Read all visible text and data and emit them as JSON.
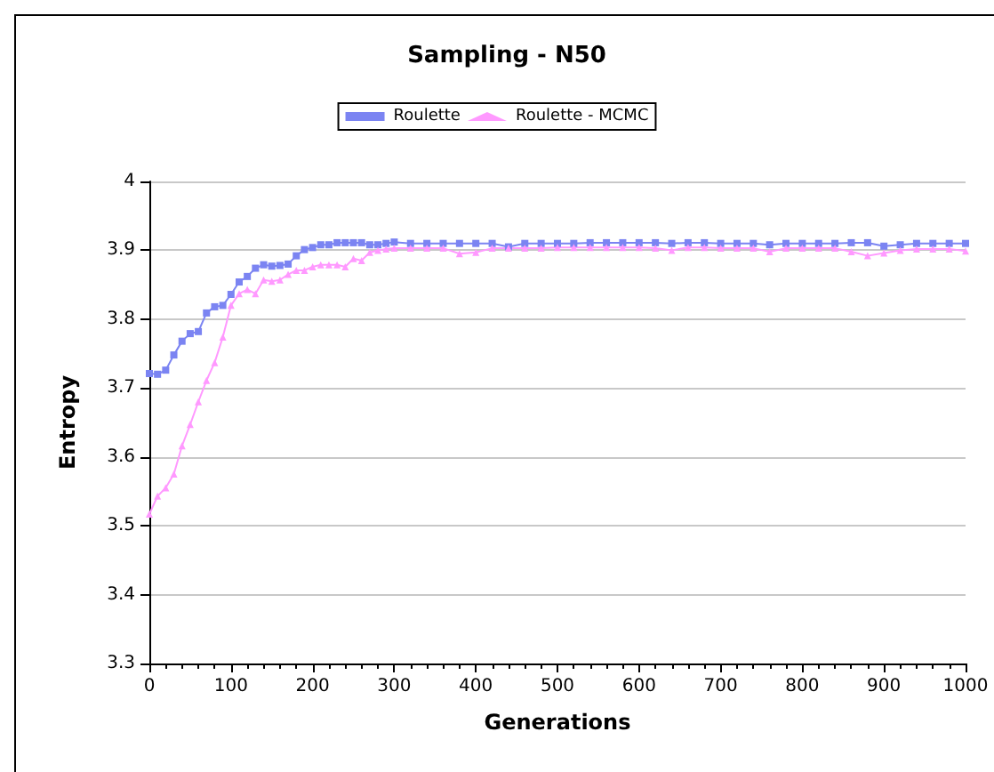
{
  "chart_data": {
    "type": "line",
    "title": "Sampling - N50",
    "xlabel": "Generations",
    "ylabel": "Entropy",
    "x": [
      0,
      10,
      20,
      30,
      40,
      50,
      60,
      70,
      80,
      90,
      100,
      110,
      120,
      130,
      140,
      150,
      160,
      170,
      180,
      190,
      200,
      210,
      220,
      230,
      240,
      250,
      260,
      270,
      280,
      290,
      300,
      320,
      340,
      360,
      380,
      400,
      420,
      440,
      460,
      480,
      500,
      520,
      540,
      560,
      580,
      600,
      620,
      640,
      660,
      680,
      700,
      720,
      740,
      760,
      780,
      800,
      820,
      840,
      860,
      880,
      900,
      920,
      940,
      960,
      980,
      1000
    ],
    "series": [
      {
        "name": "Roulette",
        "color": "#7b84f2",
        "marker": "square",
        "values": [
          3.721,
          3.72,
          3.726,
          3.748,
          3.768,
          3.779,
          3.782,
          3.809,
          3.818,
          3.82,
          3.836,
          3.854,
          3.862,
          3.874,
          3.879,
          3.877,
          3.878,
          3.88,
          3.892,
          3.901,
          3.904,
          3.908,
          3.908,
          3.911,
          3.911,
          3.911,
          3.911,
          3.908,
          3.908,
          3.91,
          3.912,
          3.91,
          3.91,
          3.91,
          3.91,
          3.91,
          3.91,
          3.905,
          3.91,
          3.91,
          3.91,
          3.91,
          3.911,
          3.911,
          3.911,
          3.911,
          3.911,
          3.91,
          3.911,
          3.911,
          3.91,
          3.91,
          3.91,
          3.908,
          3.91,
          3.91,
          3.91,
          3.91,
          3.911,
          3.911,
          3.906,
          3.908,
          3.91,
          3.91,
          3.91,
          3.91
        ]
      },
      {
        "name": "Roulette - MCMC",
        "color": "#ff99ff",
        "marker": "triangle",
        "values": [
          3.517,
          3.543,
          3.555,
          3.575,
          3.616,
          3.647,
          3.68,
          3.711,
          3.737,
          3.774,
          3.82,
          3.837,
          3.843,
          3.837,
          3.857,
          3.855,
          3.857,
          3.865,
          3.871,
          3.871,
          3.876,
          3.879,
          3.879,
          3.879,
          3.876,
          3.888,
          3.885,
          3.897,
          3.9,
          3.902,
          3.903,
          3.903,
          3.903,
          3.903,
          3.895,
          3.897,
          3.903,
          3.903,
          3.903,
          3.903,
          3.904,
          3.904,
          3.904,
          3.904,
          3.904,
          3.904,
          3.903,
          3.9,
          3.904,
          3.904,
          3.903,
          3.903,
          3.903,
          3.898,
          3.903,
          3.903,
          3.903,
          3.903,
          3.898,
          3.892,
          3.896,
          3.9,
          3.902,
          3.902,
          3.902,
          3.899
        ]
      }
    ],
    "xlim": [
      0,
      1000
    ],
    "xticks": [
      0,
      100,
      200,
      300,
      400,
      500,
      600,
      700,
      800,
      900,
      1000
    ],
    "ylim": [
      3.3,
      4
    ],
    "yticks": [
      3.3,
      3.4,
      3.5,
      3.6,
      3.7,
      3.8,
      3.9,
      4
    ],
    "grid": "y",
    "legend": "top",
    "line_style": "solid"
  }
}
